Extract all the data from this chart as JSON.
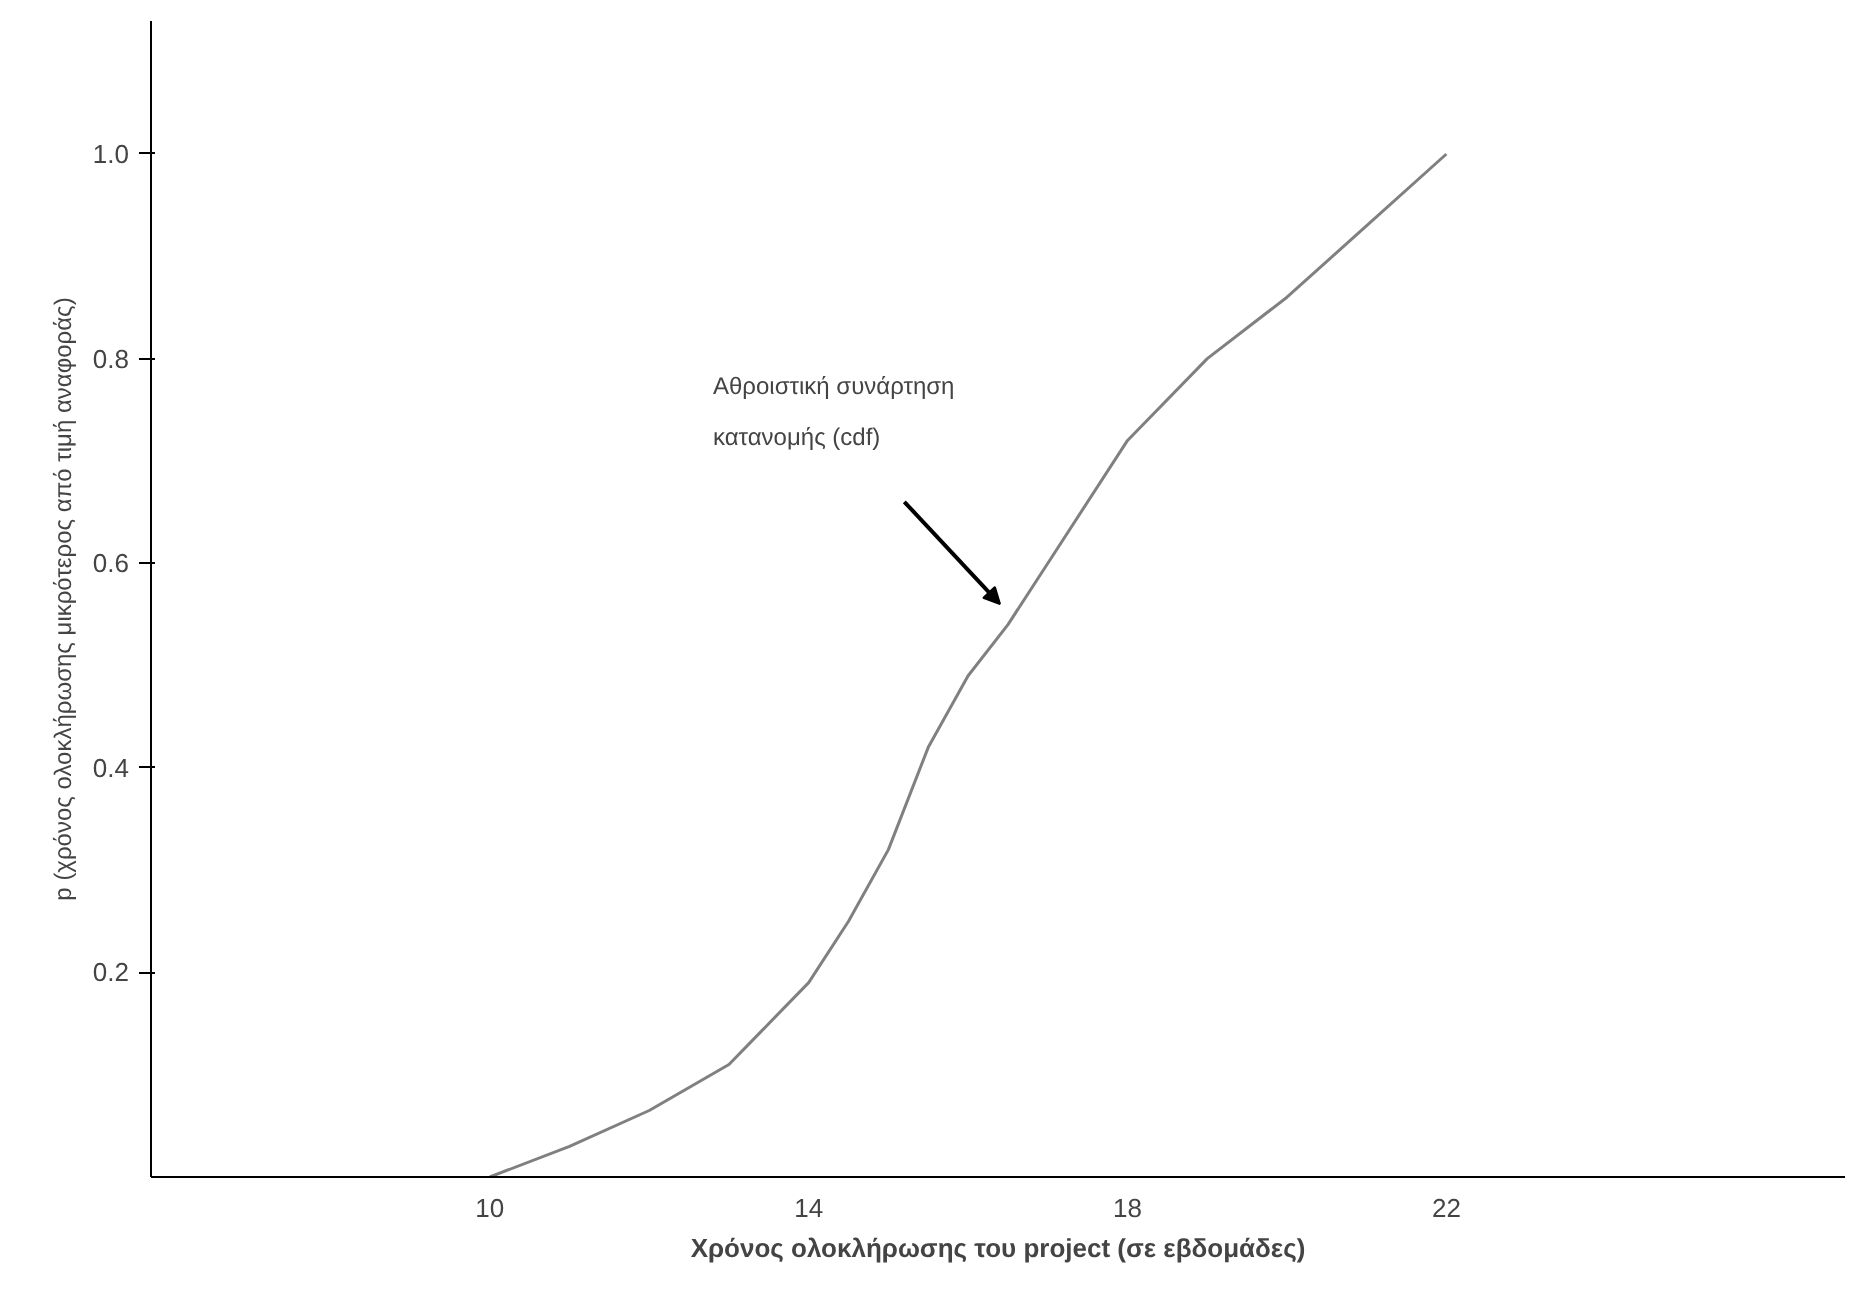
{
  "chart_data": {
    "type": "line",
    "xlabel": "Χρόνος ολοκλήρωσης του project (σε εβδομάδες)",
    "ylabel": "p (χρόνος ολοκλήρωσης μικρότερος από τιμή αναφοράς)",
    "x": [
      10,
      11,
      12,
      13,
      14,
      14.5,
      15,
      15.5,
      16,
      16.5,
      17,
      18,
      19,
      20,
      21,
      22
    ],
    "series": [
      {
        "color": "#808080",
        "values": [
          0,
          0.03,
          0.065,
          0.11,
          0.19,
          0.25,
          0.32,
          0.42,
          0.49,
          0.54,
          0.6,
          0.72,
          0.8,
          0.86,
          0.93,
          1.0
        ]
      }
    ],
    "xlim": [
      5.75,
      27
    ],
    "ylim": [
      0,
      1.13
    ],
    "xticks": [
      10,
      14,
      18,
      22
    ],
    "yticks": [
      0.2,
      0.4,
      0.6,
      0.8,
      {
        "value": 1,
        "label": "1.0"
      }
    ],
    "grid": false,
    "annotations": [
      "Αθροιστική συνάρτηση κατανομής (cdf)"
    ]
  }
}
